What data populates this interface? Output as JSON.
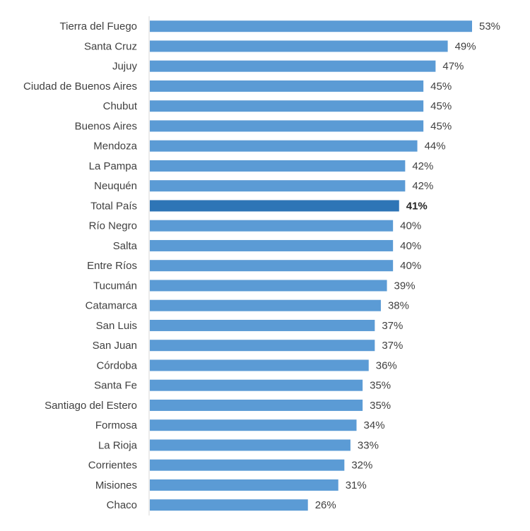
{
  "chart_data": {
    "type": "bar",
    "orientation": "horizontal",
    "categories": [
      "Tierra del Fuego",
      "Santa Cruz",
      "Jujuy",
      "Ciudad de Buenos Aires",
      "Chubut",
      "Buenos Aires",
      "Mendoza",
      "La Pampa",
      "Neuquén",
      "Total País",
      "Río Negro",
      "Salta",
      "Entre Ríos",
      "Tucumán",
      "Catamarca",
      "San Luis",
      "San Juan",
      "Córdoba",
      "Santa Fe",
      "Santiago del Estero",
      "Formosa",
      "La Rioja",
      "Corrientes",
      "Misiones",
      "Chaco"
    ],
    "values": [
      53,
      49,
      47,
      45,
      45,
      45,
      44,
      42,
      42,
      41,
      40,
      40,
      40,
      39,
      38,
      37,
      37,
      36,
      35,
      35,
      34,
      33,
      32,
      31,
      26
    ],
    "value_labels": [
      "53%",
      "49%",
      "47%",
      "45%",
      "45%",
      "45%",
      "44%",
      "42%",
      "42%",
      "41%",
      "40%",
      "40%",
      "40%",
      "39%",
      "38%",
      "37%",
      "37%",
      "36%",
      "35%",
      "35%",
      "34%",
      "33%",
      "32%",
      "31%",
      "26%"
    ],
    "highlight": "Total País",
    "colors": {
      "bar": "#5b9bd5",
      "highlight": "#2e75b6",
      "axis": "#d9d9d9"
    },
    "xlim": [
      0,
      53
    ],
    "grid": false,
    "legend": "none",
    "title": "",
    "xlabel": "",
    "ylabel": ""
  }
}
